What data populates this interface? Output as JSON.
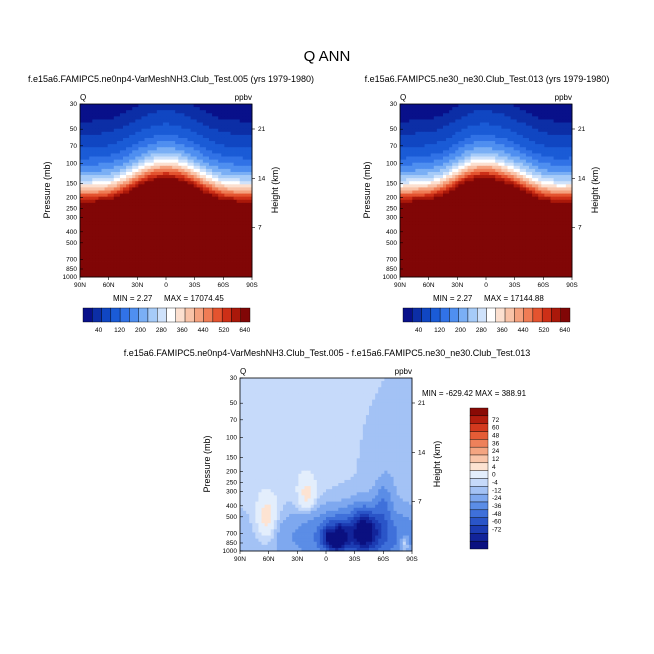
{
  "main_title": "Q ANN",
  "colors": {
    "seq": [
      "#08108a",
      "#0c2ea6",
      "#1046c2",
      "#1a5bd6",
      "#3172e6",
      "#4f8ff0",
      "#7aaff5",
      "#a6cbf8",
      "#cfe2fb",
      "#ffffff",
      "#fce0d0",
      "#f9c3a8",
      "#f5a17e",
      "#ef7c55",
      "#e4532f",
      "#cd2f17",
      "#aa180a",
      "#810606"
    ],
    "diff": [
      "#0a1080",
      "#12249a",
      "#1c3cb3",
      "#2a55c8",
      "#3f70da",
      "#5b8de6",
      "#7ea8ef",
      "#a3c2f5",
      "#c6dafa",
      "#e3eefc",
      "#fde3d2",
      "#f9c5a9",
      "#f4a581",
      "#ee815a",
      "#e45c36",
      "#d3391e",
      "#b31d0e",
      "#8a0a05"
    ]
  },
  "chart_data": [
    {
      "type": "heatmap",
      "title": "f.e15a6.FAMIPC5.ne0np4-VarMeshNH3.Club_Test.005 (yrs 1979-1980)",
      "variable": "Q",
      "units": "ppbv",
      "ylabel": "Pressure (mb)",
      "ylabel_right": "Height (km)",
      "x_ticks": [
        "90N",
        "60N",
        "30N",
        "0",
        "30S",
        "60S",
        "90S"
      ],
      "y_ticks": [
        "30",
        "50",
        "70",
        "100",
        "150",
        "200",
        "250",
        "300",
        "400",
        "500",
        "700",
        "850",
        "1000"
      ],
      "y_ticks_right": [
        "21",
        "14",
        "7"
      ],
      "min_label": "MIN =   2.27",
      "max_label": "MAX = 17074.45",
      "min": 2.27,
      "max": 17074.45,
      "colorbar_labels": [
        "40",
        "120",
        "200",
        "280",
        "360",
        "440",
        "520",
        "640"
      ]
    },
    {
      "type": "heatmap",
      "title": "f.e15a6.FAMIPC5.ne30_ne30.Club_Test.013 (yrs 1979-1980)",
      "variable": "Q",
      "units": "ppbv",
      "ylabel": "Pressure (mb)",
      "ylabel_right": "Height (km)",
      "x_ticks": [
        "90N",
        "60N",
        "30N",
        "0",
        "30S",
        "60S",
        "90S"
      ],
      "y_ticks": [
        "30",
        "50",
        "70",
        "100",
        "150",
        "200",
        "250",
        "300",
        "400",
        "500",
        "700",
        "850",
        "1000"
      ],
      "y_ticks_right": [
        "21",
        "14",
        "7"
      ],
      "min_label": "MIN =   2.27",
      "max_label": "MAX = 17144.88",
      "min": 2.27,
      "max": 17144.88,
      "colorbar_labels": [
        "40",
        "120",
        "200",
        "280",
        "360",
        "440",
        "520",
        "640"
      ]
    },
    {
      "type": "heatmap",
      "title": "f.e15a6.FAMIPC5.ne0np4-VarMeshNH3.Club_Test.005 - f.e15a6.FAMIPC5.ne30_ne30.Club_Test.013",
      "variable": "Q",
      "units": "ppbv",
      "ylabel": "Pressure (mb)",
      "ylabel_right": "Height (km)",
      "x_ticks": [
        "90N",
        "60N",
        "30N",
        "0",
        "30S",
        "60S",
        "90S"
      ],
      "y_ticks": [
        "30",
        "50",
        "70",
        "100",
        "150",
        "200",
        "250",
        "300",
        "400",
        "500",
        "700",
        "850",
        "1000"
      ],
      "y_ticks_right": [
        "21",
        "14",
        "7"
      ],
      "minmax_label": "MIN = -629.42  MAX = 388.91",
      "min": -629.42,
      "max": 388.91,
      "colorbar_labels": [
        "72",
        "60",
        "48",
        "36",
        "24",
        "12",
        "4",
        "0",
        "-4",
        "-12",
        "-24",
        "-36",
        "-48",
        "-60",
        "-72"
      ]
    }
  ]
}
